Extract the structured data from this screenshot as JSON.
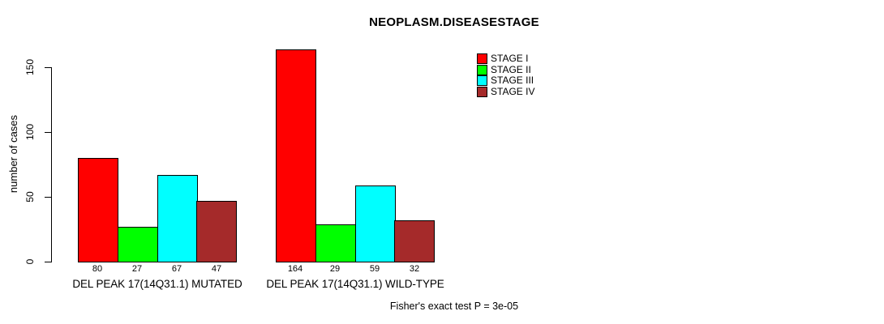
{
  "chart_data": {
    "type": "bar",
    "title": "NEOPLASM.DISEASESTAGE",
    "ylabel": "number of cases",
    "xlabel": "",
    "categories": [
      "DEL PEAK 17(14Q31.1) MUTATED",
      "DEL PEAK 17(14Q31.1) WILD-TYPE"
    ],
    "series": [
      {
        "name": "STAGE I",
        "color": "#FF0000",
        "values": [
          80,
          164
        ]
      },
      {
        "name": "STAGE II",
        "color": "#00FF00",
        "values": [
          27,
          29
        ]
      },
      {
        "name": "STAGE III",
        "color": "#00FFFF",
        "values": [
          67,
          59
        ]
      },
      {
        "name": "STAGE IV",
        "color": "#A52A2A",
        "values": [
          47,
          32
        ]
      }
    ],
    "yticks": [
      0,
      50,
      100,
      150
    ],
    "ylim": [
      0,
      164
    ],
    "grid": false,
    "legend_position": "top-right",
    "bar_value_labels_shown": true,
    "annotation": "Fisher's exact test P = 3e-05"
  },
  "colors": {
    "axis": "#000000",
    "text": "#000000",
    "background": "#FFFFFF"
  }
}
